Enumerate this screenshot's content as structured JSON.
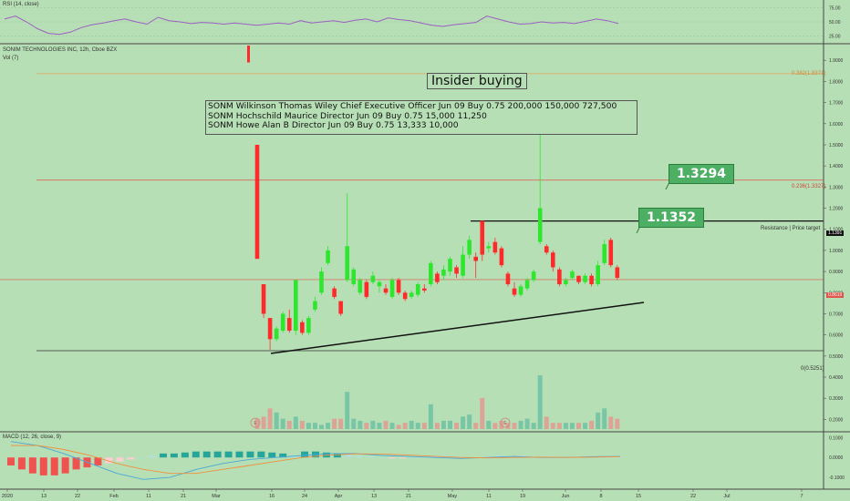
{
  "chart_data": {
    "type": "candlestick",
    "symbol_label": "SONIM TECHNOLOGIES INC, 12h, Cboe BZX",
    "vol_label": "Vol (7)",
    "rsi_label": "RSI (14, close)",
    "macd_label": "MACD (12, 26, close, 9)",
    "title_annotation": "Insider buying",
    "insider_lines": [
      "SONM Wilkinson Thomas Wiley Chief Executive Officer Jun 09 Buy 0.75 200,000 150,000 727,500",
      "SONM Hochschild Maurice Director Jun 09 Buy 0.75 15,000 11,250",
      "SONM Howe Alan B Director Jun 09 Buy 0.75 13,333 10,000"
    ],
    "badges": [
      "1.3294",
      "1.1352"
    ],
    "resistance_label": "Resistance | Price target",
    "resistance_price": "1.1391",
    "last_price": "0.8619",
    "fib_labels": [
      "0.382(1.8371)",
      "0.236(1.3327)",
      "0(0.5251)"
    ],
    "price_ticks": [
      "1.9000",
      "1.8000",
      "1.7000",
      "1.6000",
      "1.5000",
      "1.4000",
      "1.3000",
      "1.2000",
      "1.1000",
      "1.0000",
      "0.9000",
      "0.8000",
      "0.7000",
      "0.6000",
      "0.5000",
      "0.4000",
      "0.3000",
      "0.2000"
    ],
    "rsi_ticks": [
      "75.00",
      "50.00",
      "25.00"
    ],
    "macd_ticks": [
      "0.1000",
      "0.0000",
      "-0.1000"
    ],
    "x_ticks": [
      "2020",
      "13",
      "22",
      "Feb",
      "11",
      "21",
      "Mar",
      "16",
      "24",
      "Apr",
      "13",
      "21",
      "May",
      "11",
      "19",
      "Jun",
      "8",
      "15",
      "22",
      "Jul",
      "7"
    ],
    "event_markers": [
      "E",
      "E"
    ],
    "candles": [
      {
        "o": 1.5,
        "h": 1.5,
        "l": 0.96,
        "c": 0.96
      },
      {
        "o": 0.84,
        "h": 0.84,
        "l": 0.68,
        "c": 0.7
      },
      {
        "o": 0.68,
        "h": 0.68,
        "l": 0.53,
        "c": 0.58
      },
      {
        "o": 0.58,
        "h": 0.64,
        "l": 0.57,
        "c": 0.63
      },
      {
        "o": 0.62,
        "h": 0.71,
        "l": 0.61,
        "c": 0.7
      },
      {
        "o": 0.68,
        "h": 0.72,
        "l": 0.61,
        "c": 0.62
      },
      {
        "o": 0.62,
        "h": 0.86,
        "l": 0.6,
        "c": 0.86
      },
      {
        "o": 0.66,
        "h": 0.67,
        "l": 0.6,
        "c": 0.61
      },
      {
        "o": 0.61,
        "h": 0.69,
        "l": 0.6,
        "c": 0.68
      },
      {
        "o": 0.72,
        "h": 0.78,
        "l": 0.71,
        "c": 0.76
      },
      {
        "o": 0.8,
        "h": 0.92,
        "l": 0.79,
        "c": 0.9
      },
      {
        "o": 0.94,
        "h": 1.02,
        "l": 0.93,
        "c": 1.0
      },
      {
        "o": 0.82,
        "h": 0.83,
        "l": 0.77,
        "c": 0.78
      },
      {
        "o": 0.76,
        "h": 0.76,
        "l": 0.69,
        "c": 0.7
      },
      {
        "o": 0.86,
        "h": 1.27,
        "l": 0.85,
        "c": 1.02
      },
      {
        "o": 0.84,
        "h": 0.92,
        "l": 0.83,
        "c": 0.91
      },
      {
        "o": 0.8,
        "h": 0.87,
        "l": 0.79,
        "c": 0.86
      },
      {
        "o": 0.85,
        "h": 0.86,
        "l": 0.77,
        "c": 0.78
      },
      {
        "o": 0.85,
        "h": 0.9,
        "l": 0.84,
        "c": 0.88
      },
      {
        "o": 0.83,
        "h": 0.86,
        "l": 0.8,
        "c": 0.85
      },
      {
        "o": 0.82,
        "h": 0.84,
        "l": 0.79,
        "c": 0.8
      },
      {
        "o": 0.78,
        "h": 0.87,
        "l": 0.77,
        "c": 0.86
      },
      {
        "o": 0.86,
        "h": 0.87,
        "l": 0.79,
        "c": 0.8
      },
      {
        "o": 0.8,
        "h": 0.81,
        "l": 0.76,
        "c": 0.77
      },
      {
        "o": 0.78,
        "h": 0.81,
        "l": 0.77,
        "c": 0.8
      },
      {
        "o": 0.79,
        "h": 0.85,
        "l": 0.78,
        "c": 0.84
      },
      {
        "o": 0.82,
        "h": 0.84,
        "l": 0.8,
        "c": 0.81
      },
      {
        "o": 0.84,
        "h": 0.95,
        "l": 0.83,
        "c": 0.94
      },
      {
        "o": 0.89,
        "h": 0.9,
        "l": 0.84,
        "c": 0.85
      },
      {
        "o": 0.88,
        "h": 0.93,
        "l": 0.86,
        "c": 0.91
      },
      {
        "o": 0.9,
        "h": 0.97,
        "l": 0.88,
        "c": 0.96
      },
      {
        "o": 0.92,
        "h": 0.93,
        "l": 0.87,
        "c": 0.89
      },
      {
        "o": 0.88,
        "h": 1.02,
        "l": 0.87,
        "c": 0.98
      },
      {
        "o": 0.98,
        "h": 1.07,
        "l": 0.96,
        "c": 1.05
      },
      {
        "o": 0.97,
        "h": 0.99,
        "l": 0.87,
        "c": 0.95
      },
      {
        "o": 1.14,
        "h": 1.14,
        "l": 0.95,
        "c": 0.98
      },
      {
        "o": 1.01,
        "h": 1.04,
        "l": 0.99,
        "c": 1.02
      },
      {
        "o": 1.04,
        "h": 1.06,
        "l": 0.98,
        "c": 0.99
      },
      {
        "o": 1.01,
        "h": 1.02,
        "l": 0.92,
        "c": 0.93
      },
      {
        "o": 0.89,
        "h": 0.9,
        "l": 0.83,
        "c": 0.84
      },
      {
        "o": 0.82,
        "h": 0.85,
        "l": 0.78,
        "c": 0.79
      },
      {
        "o": 0.79,
        "h": 0.84,
        "l": 0.78,
        "c": 0.83
      },
      {
        "o": 0.82,
        "h": 0.87,
        "l": 0.81,
        "c": 0.86
      },
      {
        "o": 0.86,
        "h": 0.91,
        "l": 0.85,
        "c": 0.9
      },
      {
        "o": 1.04,
        "h": 1.67,
        "l": 1.03,
        "c": 1.2
      },
      {
        "o": 1.02,
        "h": 1.03,
        "l": 0.98,
        "c": 0.99
      },
      {
        "o": 0.99,
        "h": 1.0,
        "l": 0.9,
        "c": 0.92
      },
      {
        "o": 0.91,
        "h": 0.92,
        "l": 0.83,
        "c": 0.84
      },
      {
        "o": 0.84,
        "h": 0.87,
        "l": 0.83,
        "c": 0.86
      },
      {
        "o": 0.87,
        "h": 0.91,
        "l": 0.86,
        "c": 0.9
      },
      {
        "o": 0.88,
        "h": 0.88,
        "l": 0.84,
        "c": 0.85
      },
      {
        "o": 0.85,
        "h": 0.89,
        "l": 0.84,
        "c": 0.88
      },
      {
        "o": 0.88,
        "h": 0.89,
        "l": 0.83,
        "c": 0.84
      },
      {
        "o": 0.84,
        "h": 0.95,
        "l": 0.83,
        "c": 0.93
      },
      {
        "o": 0.94,
        "h": 1.05,
        "l": 0.93,
        "c": 1.03
      },
      {
        "o": 1.05,
        "h": 1.06,
        "l": 0.92,
        "c": 0.93
      },
      {
        "o": 0.92,
        "h": 0.93,
        "l": 0.86,
        "c": 0.87
      }
    ],
    "volume": [
      0.05,
      0.06,
      0.1,
      0.08,
      0.05,
      0.04,
      0.06,
      0.04,
      0.03,
      0.03,
      0.02,
      0.03,
      0.05,
      0.05,
      0.18,
      0.05,
      0.04,
      0.03,
      0.04,
      0.03,
      0.04,
      0.03,
      0.02,
      0.03,
      0.04,
      0.03,
      0.03,
      0.12,
      0.03,
      0.04,
      0.04,
      0.03,
      0.06,
      0.07,
      0.03,
      0.15,
      0.04,
      0.03,
      0.04,
      0.03,
      0.03,
      0.04,
      0.05,
      0.03,
      0.26,
      0.06,
      0.03,
      0.03,
      0.03,
      0.03,
      0.03,
      0.03,
      0.04,
      0.08,
      0.1,
      0.06,
      0.05
    ],
    "vol_ylim": [
      0,
      0.75
    ],
    "macd_hist": [
      -0.04,
      -0.06,
      -0.08,
      -0.09,
      -0.09,
      -0.08,
      -0.06,
      -0.05,
      -0.04,
      -0.03,
      -0.02,
      -0.01,
      0.0,
      0.01,
      0.02,
      0.02,
      0.025,
      0.03,
      0.03,
      0.03,
      0.03,
      0.03,
      0.03,
      0.03,
      0.025,
      0.02,
      0.01,
      0.03,
      0.03,
      0.025,
      0.02,
      0.015,
      0.01,
      0.005,
      0.0,
      -0.005,
      -0.005,
      0.0,
      0.005,
      0.01,
      0.01,
      0.005,
      0.0,
      0.0,
      0.005,
      0.01,
      0.008,
      0.01,
      0.005,
      0.0,
      0.0,
      0.002,
      0.004,
      0.006,
      0.008,
      0.006,
      0.004
    ],
    "macd_ylim": [
      -0.15,
      0.12
    ],
    "rsi": [
      55,
      60,
      50,
      38,
      30,
      28,
      32,
      40,
      45,
      48,
      52,
      55,
      50,
      46,
      58,
      52,
      50,
      47,
      49,
      48,
      46,
      48,
      46,
      44,
      46,
      48,
      46,
      52,
      48,
      50,
      52,
      49,
      53,
      55,
      50,
      57,
      54,
      52,
      48,
      44,
      42,
      45,
      47,
      49,
      60,
      55,
      50,
      46,
      47,
      50,
      48,
      49,
      47,
      51,
      55,
      52,
      47
    ],
    "ylim": [
      0.15,
      1.97
    ],
    "rsi_ylim": [
      15,
      85
    ]
  },
  "colors": {
    "bg": "#b7dfb5",
    "up": "#2ee62e",
    "down": "#ff2a2a",
    "rsi": "#9c5fc4",
    "vol_up": "#6fc2a3",
    "vol_down": "#e39a92",
    "macd_line": "#4aa7d9",
    "signal_line": "#f28f3b",
    "fib382": "#e6a45a",
    "fib236": "#e0554c",
    "last": "#e0554c"
  }
}
